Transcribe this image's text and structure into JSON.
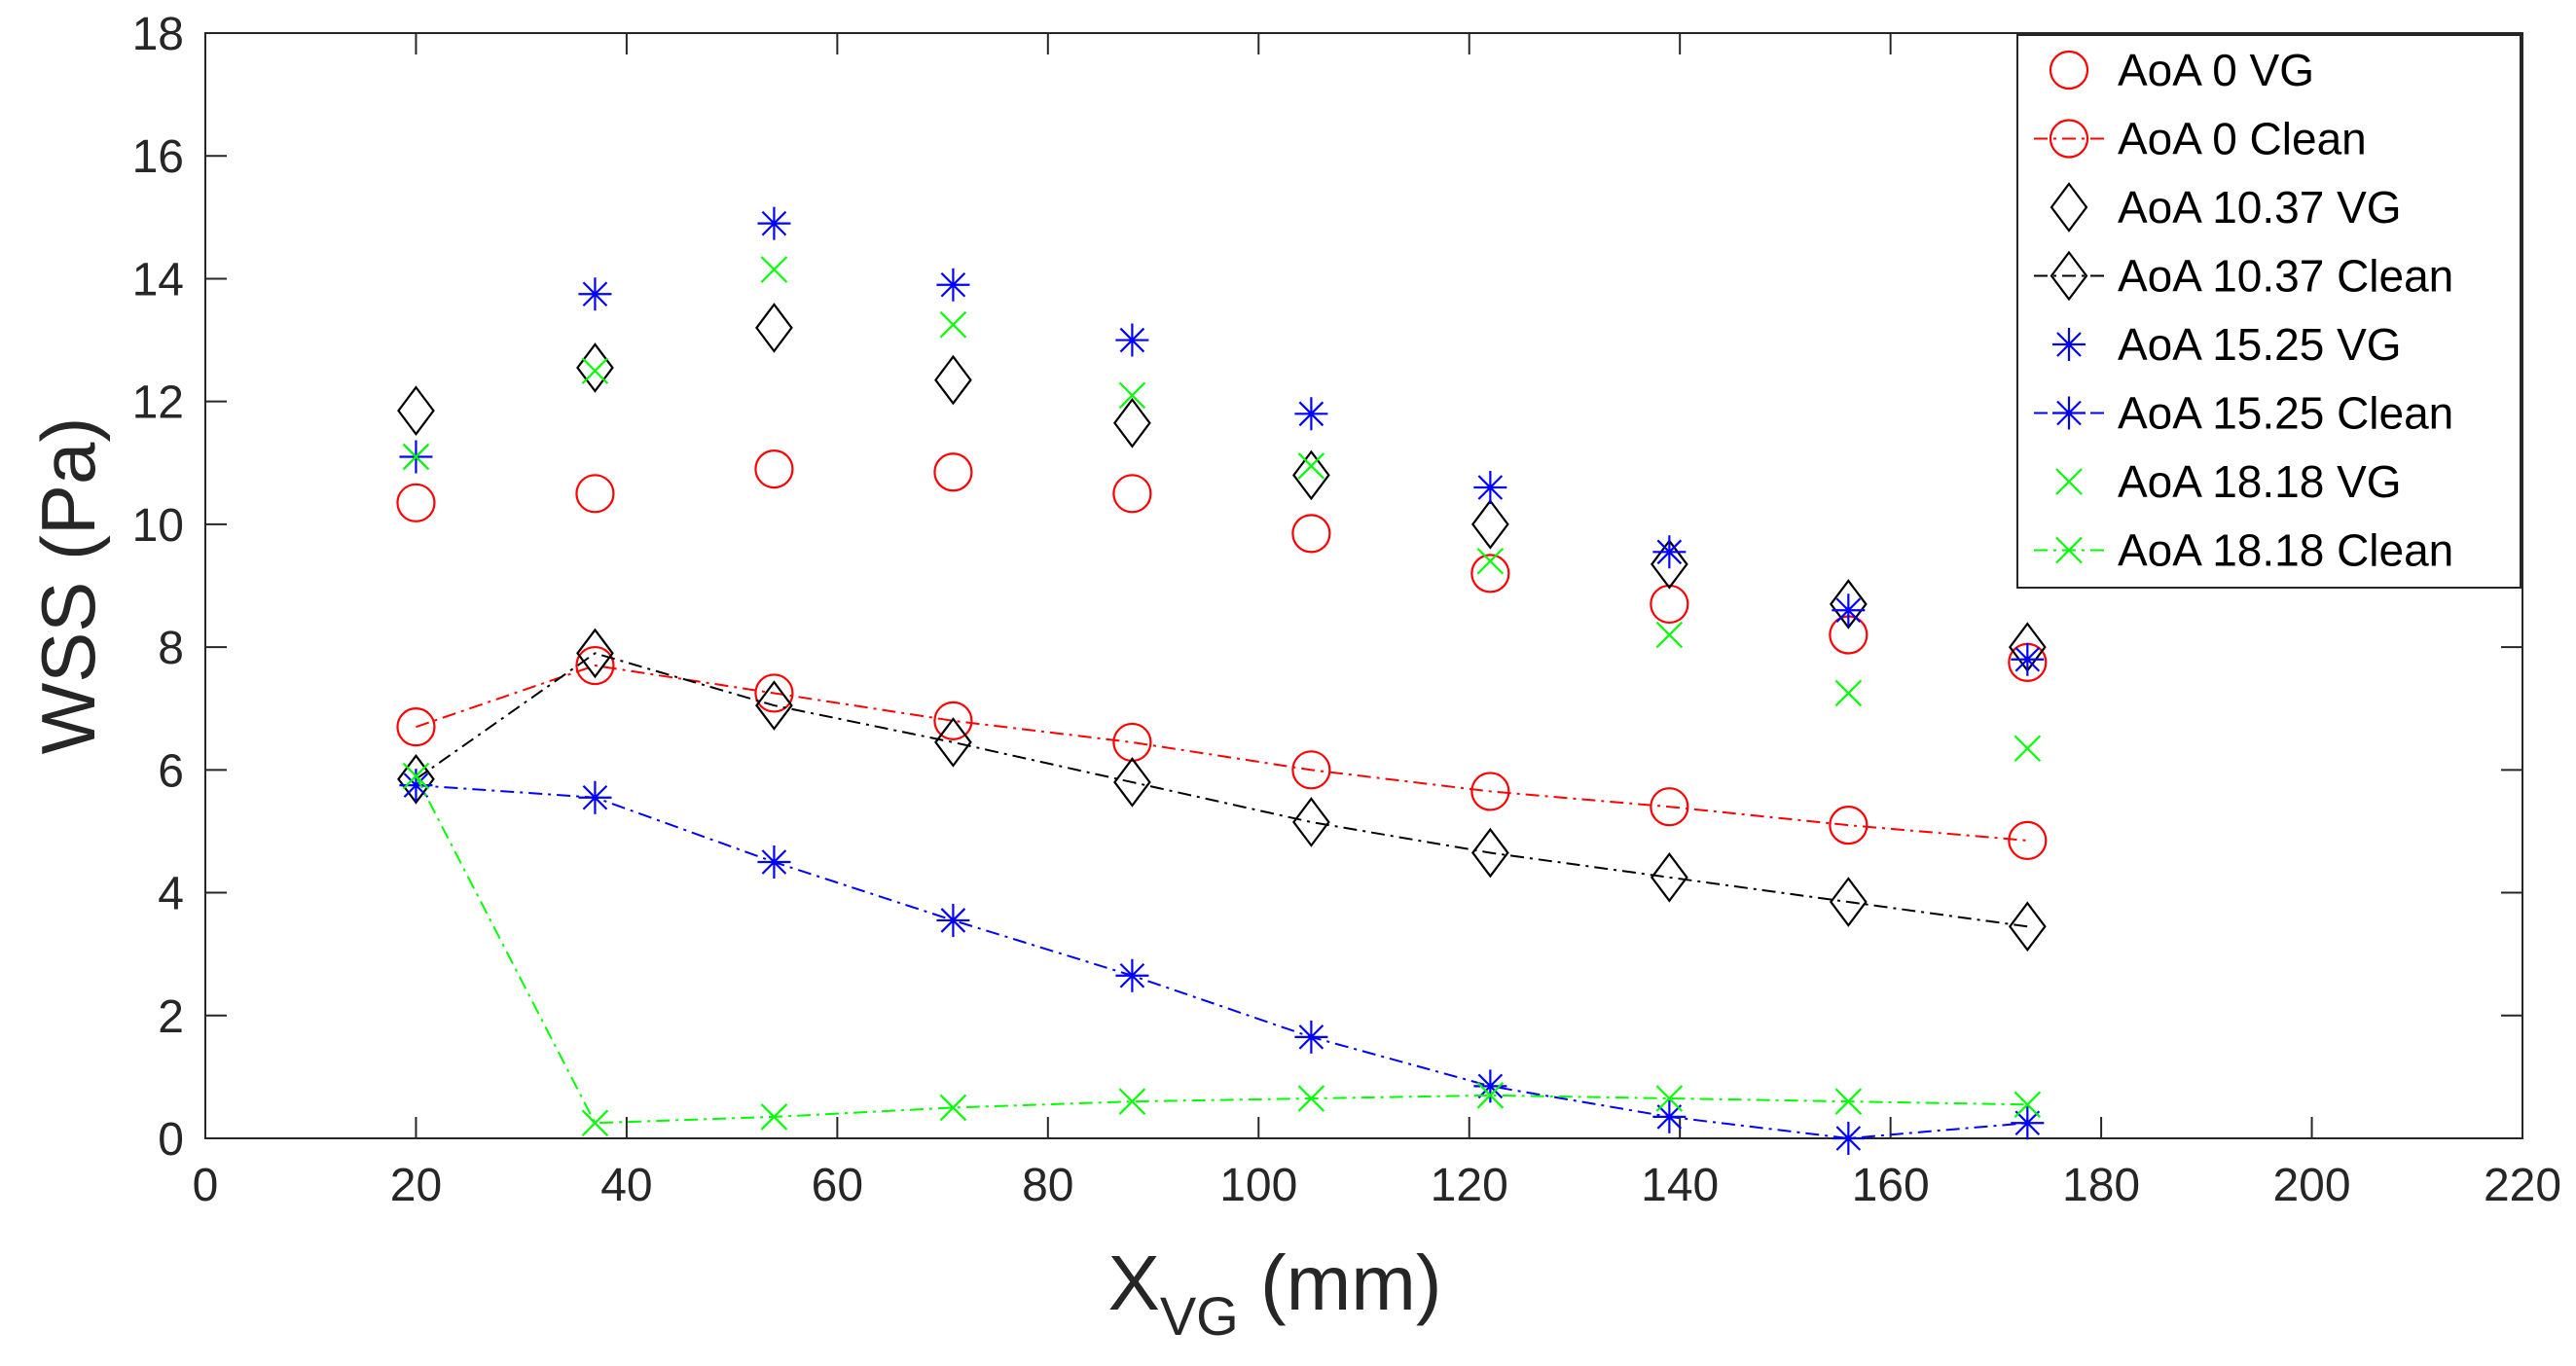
{
  "chart_data": {
    "type": "scatter",
    "xlabel": "X",
    "xlabel_sub": "VG",
    "xlabel_unit": " (mm)",
    "ylabel": "WSS (Pa)",
    "xlim": [
      0,
      220
    ],
    "ylim": [
      0,
      18
    ],
    "xticks": [
      0,
      20,
      40,
      60,
      80,
      100,
      120,
      140,
      160,
      180,
      200,
      220
    ],
    "yticks": [
      0,
      2,
      4,
      6,
      8,
      10,
      12,
      14,
      16,
      18
    ],
    "grid": false,
    "legend_position": "top-right",
    "x": [
      20,
      37,
      54,
      71,
      88,
      105,
      122,
      139,
      156,
      173
    ],
    "series": [
      {
        "name": "AoA 0 VG",
        "color": "#ff0000",
        "marker": "circle",
        "line": false,
        "values": [
          10.35,
          10.5,
          10.9,
          10.85,
          10.5,
          9.85,
          9.2,
          8.7,
          8.2,
          7.75
        ]
      },
      {
        "name": "AoA 0 Clean",
        "color": "#ff0000",
        "marker": "circle",
        "line": true,
        "values": [
          6.7,
          7.7,
          7.25,
          6.8,
          6.45,
          6.0,
          5.65,
          5.4,
          5.1,
          4.85
        ]
      },
      {
        "name": "AoA 10.37 VG",
        "color": "#000000",
        "marker": "diamond",
        "line": false,
        "values": [
          11.85,
          12.55,
          13.2,
          12.35,
          11.65,
          10.8,
          10.0,
          9.35,
          8.7,
          8.0
        ]
      },
      {
        "name": "AoA 10.37 Clean",
        "color": "#000000",
        "marker": "diamond",
        "line": true,
        "values": [
          5.85,
          7.9,
          7.05,
          6.45,
          5.8,
          5.15,
          4.65,
          4.25,
          3.85,
          3.45
        ]
      },
      {
        "name": "AoA 15.25 VG",
        "color": "#0000ff",
        "marker": "asterisk",
        "line": false,
        "values": [
          11.1,
          13.75,
          14.9,
          13.9,
          13.0,
          11.8,
          10.6,
          9.55,
          8.6,
          7.8
        ]
      },
      {
        "name": "AoA 15.25 Clean",
        "color": "#0000ff",
        "marker": "asterisk",
        "line": true,
        "values": [
          5.75,
          5.55,
          4.5,
          3.55,
          2.65,
          1.65,
          0.85,
          0.35,
          0.0,
          0.25
        ]
      },
      {
        "name": "AoA 18.18 VG",
        "color": "#00ff00",
        "marker": "x",
        "line": false,
        "values": [
          11.1,
          12.5,
          14.15,
          13.25,
          12.1,
          10.95,
          9.4,
          8.2,
          7.25,
          6.35
        ]
      },
      {
        "name": "AoA 18.18 Clean",
        "color": "#00ff00",
        "marker": "x",
        "line": true,
        "values": [
          5.9,
          0.25,
          0.35,
          0.5,
          0.6,
          0.65,
          0.7,
          0.65,
          0.6,
          0.55
        ]
      }
    ]
  }
}
